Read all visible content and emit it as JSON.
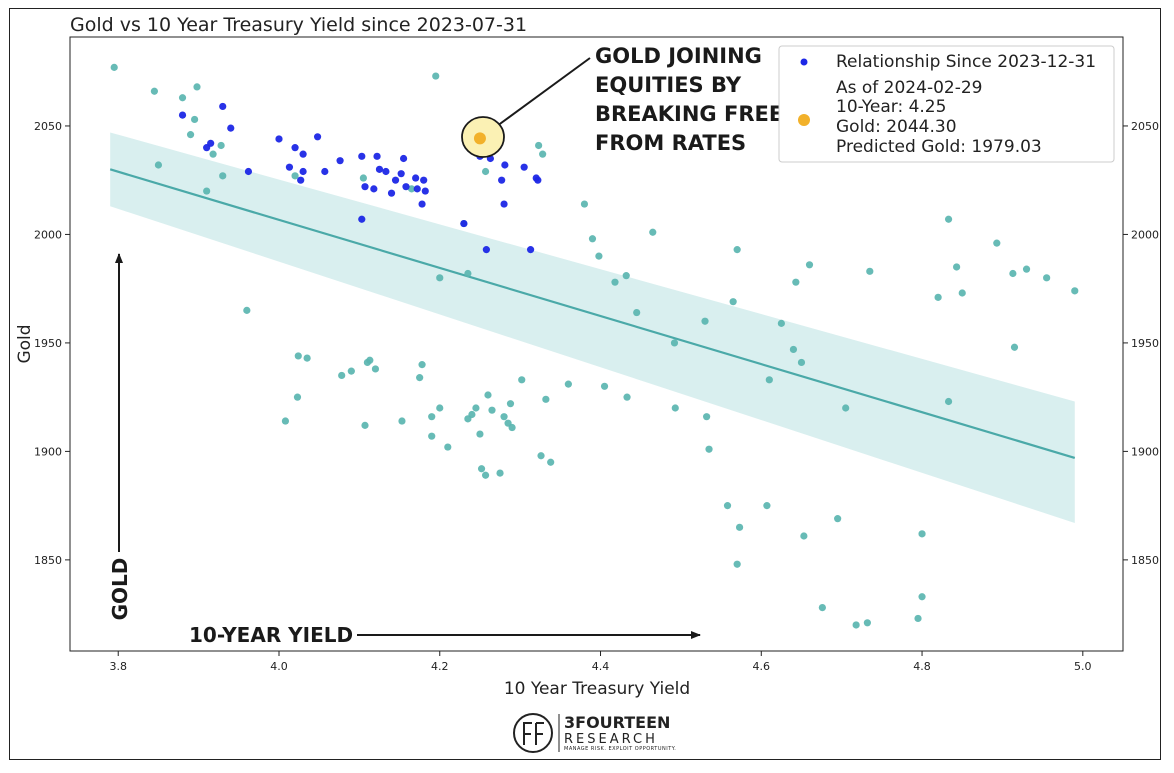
{
  "chart_data": {
    "type": "scatter",
    "title": "Gold vs 10 Year Treasury Yield since 2023-07-31",
    "xlabel": "10 Year Treasury Yield",
    "ylabel": "Gold",
    "xlim": [
      3.74,
      5.05
    ],
    "ylim": [
      1808,
      2091
    ],
    "x_ticks": [
      "3.8",
      "4.0",
      "4.2",
      "4.4",
      "4.6",
      "4.8",
      "5.0"
    ],
    "y_ticks": [
      "1850",
      "1900",
      "1950",
      "2000",
      "2050"
    ],
    "grid": false,
    "legend_position": "top-right",
    "regression": {
      "x": [
        3.79,
        4.99
      ],
      "y": [
        2030,
        1897
      ],
      "ci_upper": [
        2047,
        1923
      ],
      "ci_lower": [
        2013,
        1867
      ],
      "color": "#4aa9a8",
      "band_color": "#d9efef"
    },
    "series": [
      {
        "color": "#5ab5b0",
        "points": [
          [
            3.795,
            2077
          ],
          [
            3.845,
            2066
          ],
          [
            3.85,
            2032
          ],
          [
            3.88,
            2063
          ],
          [
            3.89,
            2046
          ],
          [
            3.895,
            2053
          ],
          [
            3.898,
            2068
          ],
          [
            3.91,
            2020
          ],
          [
            3.918,
            2037
          ],
          [
            3.928,
            2041
          ],
          [
            3.93,
            2027
          ],
          [
            3.96,
            1965
          ],
          [
            4.008,
            1914
          ],
          [
            4.02,
            2027
          ],
          [
            4.023,
            1925
          ],
          [
            4.024,
            1944
          ],
          [
            4.035,
            1943
          ],
          [
            4.078,
            1935
          ],
          [
            4.09,
            1937
          ],
          [
            4.105,
            2026
          ],
          [
            4.107,
            1912
          ],
          [
            4.11,
            1941
          ],
          [
            4.113,
            1942
          ],
          [
            4.12,
            1938
          ],
          [
            4.153,
            1914
          ],
          [
            4.165,
            2021
          ],
          [
            4.175,
            1934
          ],
          [
            4.178,
            1940
          ],
          [
            4.19,
            1907
          ],
          [
            4.19,
            1916
          ],
          [
            4.195,
            2073
          ],
          [
            4.2,
            1980
          ],
          [
            4.2,
            1920
          ],
          [
            4.21,
            1902
          ],
          [
            4.23,
            2005
          ],
          [
            4.235,
            1982
          ],
          [
            4.235,
            1915
          ],
          [
            4.24,
            1917
          ],
          [
            4.245,
            1920
          ],
          [
            4.25,
            1908
          ],
          [
            4.252,
            1892
          ],
          [
            4.257,
            1889
          ],
          [
            4.257,
            2029
          ],
          [
            4.26,
            1926
          ],
          [
            4.265,
            1919
          ],
          [
            4.275,
            1890
          ],
          [
            4.28,
            1916
          ],
          [
            4.285,
            1913
          ],
          [
            4.288,
            1922
          ],
          [
            4.29,
            1911
          ],
          [
            4.302,
            1933
          ],
          [
            4.323,
            2041
          ],
          [
            4.326,
            1898
          ],
          [
            4.328,
            2037
          ],
          [
            4.332,
            1924
          ],
          [
            4.338,
            1895
          ],
          [
            4.36,
            1931
          ],
          [
            4.38,
            2014
          ],
          [
            4.39,
            1998
          ],
          [
            4.398,
            1990
          ],
          [
            4.405,
            1930
          ],
          [
            4.418,
            1978
          ],
          [
            4.432,
            1981
          ],
          [
            4.433,
            1925
          ],
          [
            4.445,
            1964
          ],
          [
            4.465,
            2001
          ],
          [
            4.492,
            1950
          ],
          [
            4.493,
            1920
          ],
          [
            4.53,
            1960
          ],
          [
            4.532,
            1916
          ],
          [
            4.535,
            1901
          ],
          [
            4.558,
            1875
          ],
          [
            4.565,
            1969
          ],
          [
            4.57,
            1993
          ],
          [
            4.57,
            1848
          ],
          [
            4.573,
            1865
          ],
          [
            4.607,
            1875
          ],
          [
            4.61,
            1933
          ],
          [
            4.625,
            1959
          ],
          [
            4.64,
            1947
          ],
          [
            4.643,
            1978
          ],
          [
            4.65,
            1941
          ],
          [
            4.653,
            1861
          ],
          [
            4.66,
            1986
          ],
          [
            4.676,
            1828
          ],
          [
            4.695,
            1869
          ],
          [
            4.705,
            1920
          ],
          [
            4.718,
            1820
          ],
          [
            4.732,
            1821
          ],
          [
            4.735,
            1983
          ],
          [
            4.795,
            1823
          ],
          [
            4.8,
            1862
          ],
          [
            4.8,
            1833
          ],
          [
            4.82,
            1971
          ],
          [
            4.833,
            2007
          ],
          [
            4.833,
            1923
          ],
          [
            4.843,
            1985
          ],
          [
            4.85,
            1973
          ],
          [
            4.893,
            1996
          ],
          [
            4.913,
            1982
          ],
          [
            4.915,
            1948
          ],
          [
            4.93,
            1984
          ],
          [
            4.955,
            1980
          ],
          [
            4.99,
            1974
          ]
        ]
      },
      {
        "name": "Relationship Since 2023-12-31",
        "color": "#1c27e6",
        "points": [
          [
            3.88,
            2055
          ],
          [
            3.91,
            2040
          ],
          [
            3.915,
            2042
          ],
          [
            3.93,
            2059
          ],
          [
            3.94,
            2049
          ],
          [
            3.962,
            2029
          ],
          [
            4.0,
            2044
          ],
          [
            4.013,
            2031
          ],
          [
            4.02,
            2040
          ],
          [
            4.027,
            2025
          ],
          [
            4.03,
            2029
          ],
          [
            4.03,
            2037
          ],
          [
            4.048,
            2045
          ],
          [
            4.057,
            2029
          ],
          [
            4.076,
            2034
          ],
          [
            4.103,
            2036
          ],
          [
            4.103,
            2007
          ],
          [
            4.107,
            2022
          ],
          [
            4.118,
            2021
          ],
          [
            4.122,
            2036
          ],
          [
            4.125,
            2030
          ],
          [
            4.133,
            2029
          ],
          [
            4.14,
            2019
          ],
          [
            4.145,
            2025
          ],
          [
            4.152,
            2028
          ],
          [
            4.155,
            2035
          ],
          [
            4.158,
            2022
          ],
          [
            4.17,
            2026
          ],
          [
            4.172,
            2021
          ],
          [
            4.178,
            2014
          ],
          [
            4.18,
            2025
          ],
          [
            4.182,
            2020
          ],
          [
            4.23,
            2005
          ],
          [
            4.25,
            2036
          ],
          [
            4.258,
            1993
          ],
          [
            4.263,
            2035
          ],
          [
            4.277,
            2025
          ],
          [
            4.28,
            2014
          ],
          [
            4.281,
            2032
          ],
          [
            4.305,
            2031
          ],
          [
            4.313,
            1993
          ],
          [
            4.32,
            2026
          ],
          [
            4.322,
            2025
          ]
        ]
      }
    ],
    "current_point": {
      "x": 4.25,
      "y": 2044.3,
      "color": "#f2b12a"
    },
    "legend": {
      "series_label": "Relationship Since 2023-12-31",
      "current_lines": [
        "As of 2024-02-29",
        "10-Year: 4.25",
        "Gold: 2044.30",
        "Predicted Gold: 1979.03"
      ]
    },
    "annotations": {
      "callout_lines": [
        "GOLD JOINING",
        "EQUITIES BY",
        "BREAKING FREE",
        "FROM RATES"
      ],
      "y_arrow_label": "GOLD",
      "x_arrow_label": "10-YEAR YIELD"
    }
  },
  "logo": {
    "name": "3FOURTEEN",
    "sub": "RESEARCH",
    "tagline": "MANAGE RISK. EXPLOIT OPPORTUNITY."
  }
}
